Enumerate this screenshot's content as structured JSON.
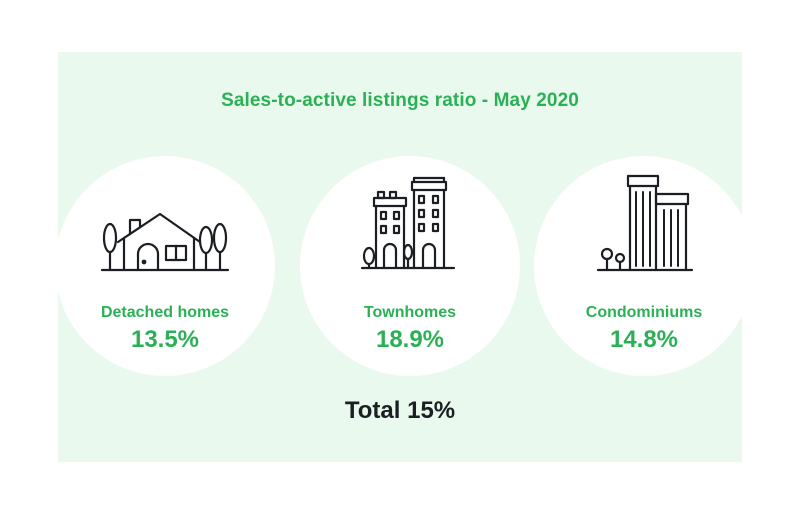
{
  "title": "Sales-to-active listings ratio - May 2020",
  "categories": [
    {
      "label": "Detached homes",
      "value": "13.5%",
      "icon": "house-icon"
    },
    {
      "label": "Townhomes",
      "value": "18.9%",
      "icon": "townhomes-icon"
    },
    {
      "label": "Condominiums",
      "value": "14.8%",
      "icon": "condo-towers-icon"
    }
  ],
  "total": "Total 15%",
  "colors": {
    "accent": "#2bb155",
    "panel_background": "#e9f9ee",
    "circle_background": "#ffffff",
    "total_text": "#1b1f24"
  }
}
